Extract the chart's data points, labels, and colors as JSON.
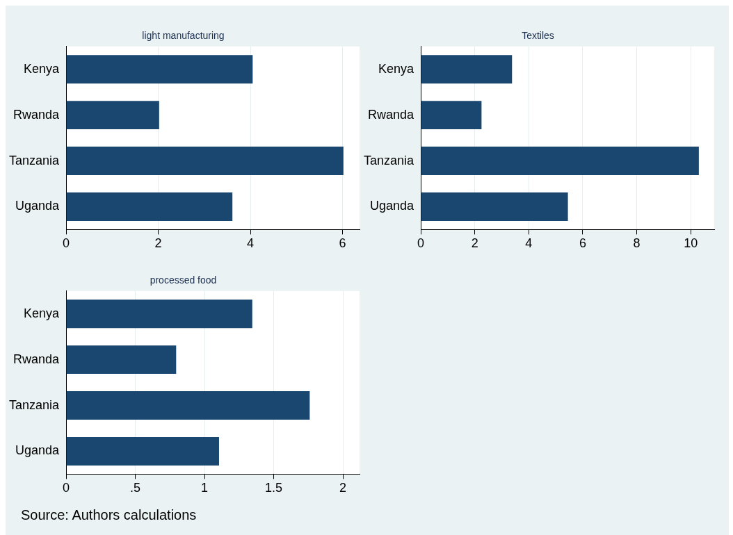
{
  "chart_data": [
    {
      "type": "bar",
      "orientation": "horizontal",
      "title": "light manufacturing",
      "categories": [
        "Kenya",
        "Rwanda",
        "Tanzania",
        "Uganda"
      ],
      "values": [
        4.05,
        2.02,
        6.02,
        3.61
      ],
      "color": "#1a476f",
      "xlim": [
        0,
        6.37
      ],
      "xticks": [
        0,
        2,
        4,
        6
      ],
      "grid": "x"
    },
    {
      "type": "bar",
      "orientation": "horizontal",
      "title": "Textiles",
      "categories": [
        "Kenya",
        "Rwanda",
        "Tanzania",
        "Uganda"
      ],
      "values": [
        3.38,
        2.25,
        10.3,
        5.45
      ],
      "color": "#1a476f",
      "xlim": [
        0,
        10.87
      ],
      "xticks": [
        0,
        2,
        4,
        6,
        8,
        10
      ],
      "grid": "x"
    },
    {
      "type": "bar",
      "orientation": "horizontal",
      "title": "processed food",
      "categories": [
        "Kenya",
        "Rwanda",
        "Tanzania",
        "Uganda"
      ],
      "values": [
        1.345,
        0.795,
        1.76,
        1.105
      ],
      "color": "#1a476f",
      "xlim": [
        0,
        2.12
      ],
      "xticks": [
        0,
        {
          "value": 0.5,
          "label": ".5"
        },
        1,
        1.5,
        2
      ],
      "grid": "x",
      "annotations": [
        "Source: Authors calculations"
      ]
    }
  ]
}
